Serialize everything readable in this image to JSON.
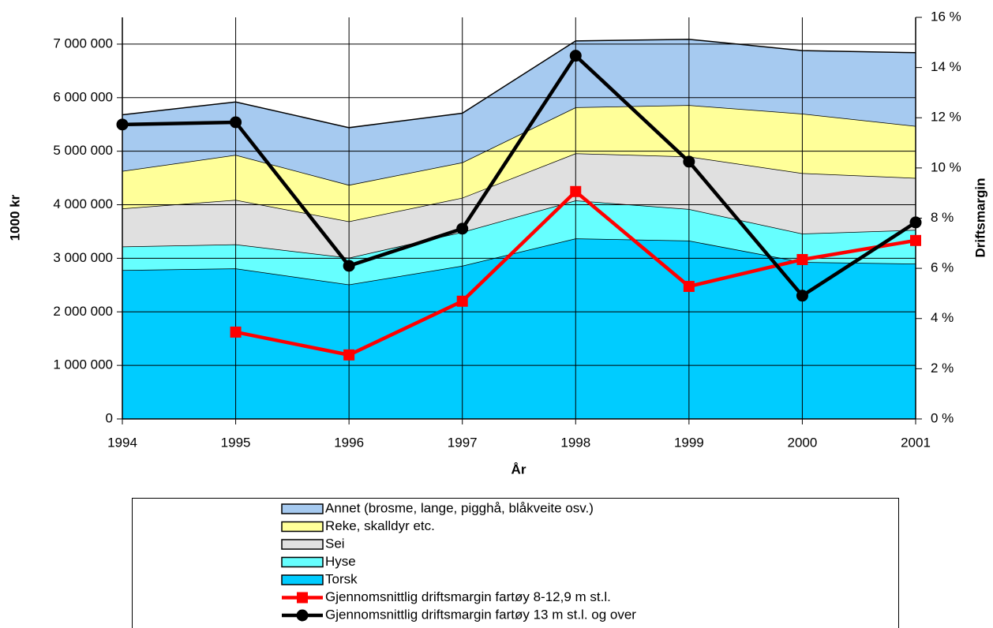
{
  "chart_data": {
    "type": "area",
    "stacked": true,
    "categories": [
      "1994",
      "1995",
      "1996",
      "1997",
      "1998",
      "1999",
      "2000",
      "2001"
    ],
    "series": [
      {
        "name": "Torsk",
        "color": "#00ccff",
        "values": [
          2780000,
          2810000,
          2510000,
          2860000,
          3370000,
          3330000,
          2930000,
          2900000
        ]
      },
      {
        "name": "Hyse",
        "color": "#66ffff",
        "values": [
          440000,
          450000,
          500000,
          630000,
          710000,
          590000,
          530000,
          630000
        ]
      },
      {
        "name": "Sei",
        "color": "#e0e0e0",
        "values": [
          710000,
          830000,
          680000,
          640000,
          880000,
          980000,
          1130000,
          970000
        ]
      },
      {
        "name": "Reke, skalldyr etc.",
        "color": "#ffff99",
        "values": [
          700000,
          840000,
          680000,
          660000,
          860000,
          960000,
          1110000,
          970000
        ]
      },
      {
        "name": "Annet (brosme, lange, pigghå, blåkveite osv.)",
        "color": "#a6caf0",
        "values": [
          1050000,
          990000,
          1070000,
          920000,
          1240000,
          1230000,
          1180000,
          1370000
        ]
      },
      {
        "name": "Gjennomsnittlig driftsmargin fartøy 8-12,9 m st.l.",
        "color": "#ff0000",
        "axis": "y2",
        "marker": "square",
        "values": [
          null,
          3.46,
          2.55,
          4.69,
          9.06,
          5.28,
          6.35,
          7.11
        ]
      },
      {
        "name": "Gjennomsnittlig driftsmargin fartøy 13 m st.l. og over",
        "color": "#000000",
        "axis": "y2",
        "marker": "circle",
        "values": [
          11.73,
          11.82,
          6.1,
          7.58,
          14.47,
          10.25,
          4.91,
          7.83
        ]
      }
    ],
    "xlabel": "År",
    "ylabel": "1000 kr",
    "y2label": "Driftsmargin",
    "ylim": [
      0,
      7500000
    ],
    "yticks": [
      0,
      {
        "value": 1000000,
        "label": "1 000 000"
      },
      {
        "value": 2000000,
        "label": "2 000 000"
      },
      {
        "value": 3000000,
        "label": "3 000 000"
      },
      {
        "value": 4000000,
        "label": "4 000 000"
      },
      {
        "value": 5000000,
        "label": "5 000 000"
      },
      {
        "value": 6000000,
        "label": "6 000 000"
      },
      {
        "value": 7000000,
        "label": "7 000 000"
      }
    ],
    "y2lim": [
      0,
      16
    ],
    "y2ticks": [
      {
        "value": 0,
        "label": "0 %"
      },
      {
        "value": 2,
        "label": "2 %"
      },
      {
        "value": 4,
        "label": "4 %"
      },
      {
        "value": 6,
        "label": "6 %"
      },
      {
        "value": 8,
        "label": "8 %"
      },
      {
        "value": 10,
        "label": "10 %"
      },
      {
        "value": 12,
        "label": "12 %"
      },
      {
        "value": 14,
        "label": "14 %"
      },
      {
        "value": 16,
        "label": "16 %"
      }
    ],
    "grid": true,
    "legend": "bottom"
  }
}
